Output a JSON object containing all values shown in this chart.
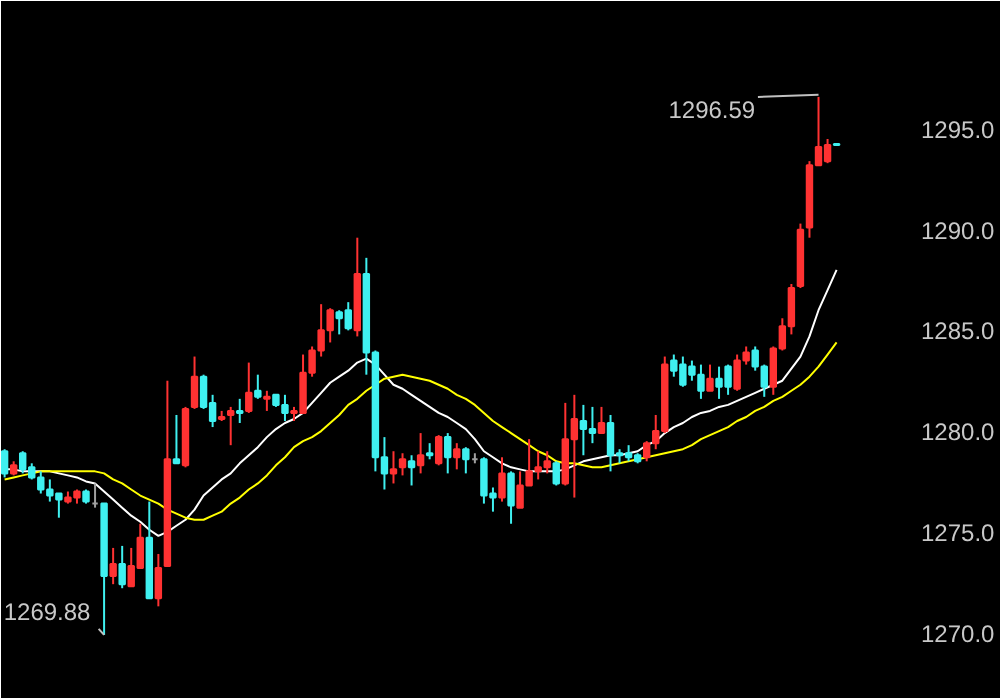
{
  "chart_data": {
    "type": "candlestick",
    "categories": [
      null,
      null,
      null,
      null,
      null,
      null,
      null,
      null,
      null,
      null,
      null,
      null,
      null,
      null,
      null,
      null,
      null,
      null,
      null,
      null,
      null,
      null,
      null,
      null,
      null,
      null,
      null,
      null,
      null,
      null,
      null,
      null,
      null,
      null,
      null,
      null,
      null,
      null,
      null,
      null,
      null,
      null,
      null,
      null,
      null,
      null,
      null,
      null,
      null,
      null,
      null,
      null,
      null,
      null,
      null,
      null,
      null,
      null,
      null,
      null,
      null,
      null,
      null,
      null,
      null,
      null,
      null,
      null,
      null,
      null,
      null,
      null,
      null,
      null,
      null,
      null,
      null,
      null,
      null,
      null,
      null,
      null,
      null,
      null,
      null,
      null,
      null,
      null,
      null,
      null,
      null,
      null,
      null
    ],
    "ohlc": [
      [
        1279.0,
        1279.1,
        1277.7,
        1277.9
      ],
      [
        1277.9,
        1278.5,
        1277.8,
        1278.3
      ],
      [
        1278.9,
        1279.0,
        1277.9,
        1278.1
      ],
      [
        1278.2,
        1278.4,
        1277.6,
        1277.7
      ],
      [
        1277.7,
        1278.0,
        1276.9,
        1277.1
      ],
      [
        1277.1,
        1277.6,
        1276.5,
        1276.8
      ],
      [
        1276.9,
        1276.9,
        1275.7,
        1276.6
      ],
      [
        1276.5,
        1277.0,
        1276.4,
        1276.7
      ],
      [
        1276.7,
        1277.1,
        1276.4,
        1277.0
      ],
      [
        1277.0,
        1277.1,
        1276.4,
        1276.5
      ],
      [
        1276.4,
        1277.4,
        1276.2,
        1276.4
      ],
      [
        1276.4,
        1276.4,
        1269.88,
        1272.8
      ],
      [
        1272.8,
        1274.2,
        1272.4,
        1273.4
      ],
      [
        1273.4,
        1274.3,
        1272.2,
        1272.4
      ],
      [
        1272.3,
        1274.2,
        1272.3,
        1273.3
      ],
      [
        1273.2,
        1275.4,
        1273.2,
        1274.7
      ],
      [
        1274.7,
        1276.5,
        1271.7,
        1271.7
      ],
      [
        1271.7,
        1273.9,
        1271.3,
        1273.2
      ],
      [
        1273.3,
        1282.5,
        1273.3,
        1278.6
      ],
      [
        1278.6,
        1280.8,
        1278.4,
        1278.4
      ],
      [
        1278.3,
        1281.2,
        1278.2,
        1281.1
      ],
      [
        1281.2,
        1283.7,
        1281.1,
        1282.7
      ],
      [
        1282.7,
        1282.8,
        1281.1,
        1281.2
      ],
      [
        1281.4,
        1281.8,
        1280.2,
        1280.5
      ],
      [
        1280.6,
        1281.0,
        1280.5,
        1280.7
      ],
      [
        1280.8,
        1281.2,
        1279.3,
        1281.0
      ],
      [
        1281.0,
        1281.6,
        1280.4,
        1280.9
      ],
      [
        1281.0,
        1283.4,
        1280.9,
        1281.9
      ],
      [
        1282.0,
        1282.8,
        1281.6,
        1281.7
      ],
      [
        1281.6,
        1282.0,
        1281.0,
        1281.7
      ],
      [
        1281.8,
        1281.8,
        1281.2,
        1281.3
      ],
      [
        1281.3,
        1281.8,
        1280.5,
        1280.9
      ],
      [
        1280.9,
        1281.2,
        1280.5,
        1281.0
      ],
      [
        1280.9,
        1283.8,
        1280.9,
        1282.9
      ],
      [
        1282.9,
        1284.2,
        1282.7,
        1284.0
      ],
      [
        1284.0,
        1286.3,
        1283.7,
        1285.0
      ],
      [
        1285.0,
        1286.1,
        1284.4,
        1286.0
      ],
      [
        1285.9,
        1286.0,
        1284.8,
        1285.6
      ],
      [
        1286.0,
        1286.4,
        1285.0,
        1285.1
      ],
      [
        1285.0,
        1289.6,
        1284.7,
        1287.8
      ],
      [
        1287.8,
        1288.6,
        1282.8,
        1283.9
      ],
      [
        1283.9,
        1284.0,
        1278.0,
        1278.7
      ],
      [
        1278.7,
        1279.7,
        1277.1,
        1277.9
      ],
      [
        1277.9,
        1279.0,
        1277.4,
        1278.1
      ],
      [
        1278.2,
        1278.9,
        1277.8,
        1278.6
      ],
      [
        1278.5,
        1278.8,
        1277.3,
        1278.2
      ],
      [
        1278.3,
        1279.9,
        1277.9,
        1278.8
      ],
      [
        1278.9,
        1279.4,
        1278.6,
        1278.8
      ],
      [
        1278.4,
        1279.8,
        1278.3,
        1279.7
      ],
      [
        1279.7,
        1279.9,
        1277.9,
        1278.7
      ],
      [
        1278.7,
        1279.4,
        1278.1,
        1279.1
      ],
      [
        1279.1,
        1279.2,
        1277.9,
        1278.6
      ],
      [
        1278.6,
        1278.9,
        1278.4,
        1278.6
      ],
      [
        1278.6,
        1278.7,
        1276.4,
        1276.8
      ],
      [
        1276.9,
        1277.2,
        1276.0,
        1276.7
      ],
      [
        1276.7,
        1278.7,
        1276.5,
        1277.9
      ],
      [
        1277.9,
        1278.0,
        1275.4,
        1276.3
      ],
      [
        1276.2,
        1278.0,
        1276.2,
        1277.3
      ],
      [
        1277.3,
        1279.6,
        1277.3,
        1278.0
      ],
      [
        1278.0,
        1279.0,
        1277.6,
        1278.2
      ],
      [
        1278.2,
        1279.0,
        1277.9,
        1278.5
      ],
      [
        1278.4,
        1278.5,
        1277.3,
        1277.4
      ],
      [
        1277.4,
        1281.4,
        1277.3,
        1279.6
      ],
      [
        1279.6,
        1281.8,
        1276.7,
        1280.6
      ],
      [
        1280.5,
        1281.3,
        1278.8,
        1280.1
      ],
      [
        1280.1,
        1281.2,
        1279.4,
        1279.9
      ],
      [
        1279.9,
        1281.2,
        1279.9,
        1280.4
      ],
      [
        1280.4,
        1280.8,
        1278.0,
        1278.8
      ],
      [
        1278.9,
        1279.1,
        1278.4,
        1278.8
      ],
      [
        1278.9,
        1279.3,
        1278.5,
        1278.7
      ],
      [
        1278.8,
        1278.9,
        1278.4,
        1278.5
      ],
      [
        1278.7,
        1279.5,
        1278.5,
        1279.4
      ],
      [
        1279.4,
        1280.8,
        1279.1,
        1280.0
      ],
      [
        1280.0,
        1283.7,
        1279.9,
        1283.3
      ],
      [
        1283.5,
        1283.8,
        1282.7,
        1283.0
      ],
      [
        1283.3,
        1283.7,
        1282.2,
        1282.3
      ],
      [
        1283.2,
        1283.5,
        1282.5,
        1282.8
      ],
      [
        1282.8,
        1283.3,
        1281.6,
        1282.0
      ],
      [
        1282.0,
        1283.3,
        1282.0,
        1282.6
      ],
      [
        1282.6,
        1283.2,
        1281.6,
        1282.2
      ],
      [
        1283.2,
        1283.3,
        1281.8,
        1282.2
      ],
      [
        1282.1,
        1283.8,
        1282.0,
        1283.5
      ],
      [
        1283.5,
        1284.2,
        1283.3,
        1283.9
      ],
      [
        1284.0,
        1284.2,
        1283.0,
        1283.2
      ],
      [
        1283.2,
        1283.3,
        1281.7,
        1282.2
      ],
      [
        1282.2,
        1284.2,
        1281.8,
        1284.1
      ],
      [
        1284.1,
        1285.6,
        1284.0,
        1285.2
      ],
      [
        1285.2,
        1287.3,
        1284.8,
        1287.1
      ],
      [
        1287.2,
        1290.3,
        1287.1,
        1290.0
      ],
      [
        1290.1,
        1293.4,
        1289.6,
        1293.2
      ],
      [
        1293.2,
        1296.59,
        1293.2,
        1294.1
      ],
      [
        1293.4,
        1294.5,
        1293.3,
        1294.2
      ],
      [
        1294.25,
        1294.25,
        1294.2,
        1294.2
      ]
    ],
    "colors": [
      "#3ff0f0",
      "#ff3232",
      "#3ff0f0",
      "#3ff0f0",
      "#3ff0f0",
      "#3ff0f0",
      "#3ff0f0",
      "#ff3232",
      "#ff3232",
      "#3ff0f0",
      "#a0a0a0",
      "#3ff0f0",
      "#ff3232",
      "#3ff0f0",
      "#ff3232",
      "#ff3232",
      "#3ff0f0",
      "#ff3232",
      "#ff3232",
      "#3ff0f0",
      "#ff3232",
      "#ff3232",
      "#3ff0f0",
      "#3ff0f0",
      "#ff3232",
      "#ff3232",
      "#3ff0f0",
      "#ff3232",
      "#3ff0f0",
      "#ff3232",
      "#3ff0f0",
      "#3ff0f0",
      "#ff3232",
      "#ff3232",
      "#ff3232",
      "#ff3232",
      "#ff3232",
      "#3ff0f0",
      "#3ff0f0",
      "#ff3232",
      "#3ff0f0",
      "#3ff0f0",
      "#3ff0f0",
      "#ff3232",
      "#ff3232",
      "#3ff0f0",
      "#ff3232",
      "#3ff0f0",
      "#ff3232",
      "#3ff0f0",
      "#ff3232",
      "#3ff0f0",
      "#a0a0a0",
      "#3ff0f0",
      "#3ff0f0",
      "#ff3232",
      "#3ff0f0",
      "#ff3232",
      "#ff3232",
      "#ff3232",
      "#ff3232",
      "#3ff0f0",
      "#ff3232",
      "#ff3232",
      "#3ff0f0",
      "#3ff0f0",
      "#ff3232",
      "#3ff0f0",
      "#3ff0f0",
      "#3ff0f0",
      "#3ff0f0",
      "#ff3232",
      "#ff3232",
      "#ff3232",
      "#3ff0f0",
      "#3ff0f0",
      "#3ff0f0",
      "#3ff0f0",
      "#ff3232",
      "#3ff0f0",
      "#3ff0f0",
      "#ff3232",
      "#ff3232",
      "#3ff0f0",
      "#3ff0f0",
      "#ff3232",
      "#ff3232",
      "#ff3232",
      "#ff3232",
      "#ff3232",
      "#ff3232",
      "#ff3232",
      "#3ff0f0"
    ],
    "series": [
      {
        "type": "line",
        "color": "#ffffff",
        "values": [
          1278.1,
          1278.1,
          1278.0,
          1278.0,
          1278.0,
          1278.0,
          1277.9,
          1277.8,
          1277.7,
          1277.5,
          1277.4,
          1277.0,
          1276.6,
          1276.2,
          1275.8,
          1275.5,
          1275.1,
          1274.8,
          1275.0,
          1275.3,
          1275.6,
          1276.1,
          1276.8,
          1277.2,
          1277.6,
          1277.9,
          1278.4,
          1278.8,
          1279.2,
          1279.7,
          1280.1,
          1280.4,
          1280.6,
          1280.9,
          1281.4,
          1281.9,
          1282.4,
          1282.7,
          1283.0,
          1283.4,
          1283.6,
          1283.3,
          1282.8,
          1282.3,
          1282.1,
          1281.8,
          1281.5,
          1281.2,
          1280.9,
          1280.7,
          1280.4,
          1280.1,
          1279.6,
          1279.0,
          1278.7,
          1278.4,
          1278.2,
          1278.1,
          1278.0,
          1278.0,
          1278.0,
          1278.0,
          1278.1,
          1278.3,
          1278.5,
          1278.6,
          1278.7,
          1278.8,
          1278.8,
          1278.9,
          1279.0,
          1279.3,
          1279.5,
          1279.9,
          1280.2,
          1280.4,
          1280.7,
          1280.9,
          1281.0,
          1281.2,
          1281.3,
          1281.5,
          1281.7,
          1281.9,
          1282.1,
          1282.3,
          1282.5,
          1283.1,
          1283.7,
          1284.7,
          1286.0,
          1287.0,
          1288.0
        ]
      },
      {
        "type": "line",
        "color": "#ffff00",
        "values": [
          1277.6,
          1277.7,
          1277.8,
          1277.9,
          1278.0,
          1278.0,
          1278.0,
          1278.0,
          1278.0,
          1278.0,
          1278.0,
          1277.9,
          1277.6,
          1277.4,
          1277.1,
          1276.8,
          1276.6,
          1276.4,
          1276.1,
          1275.9,
          1275.7,
          1275.6,
          1275.6,
          1275.8,
          1276.0,
          1276.4,
          1276.7,
          1277.1,
          1277.4,
          1277.8,
          1278.3,
          1278.7,
          1279.2,
          1279.5,
          1279.7,
          1280.0,
          1280.4,
          1280.8,
          1281.3,
          1281.6,
          1282.0,
          1282.3,
          1282.6,
          1282.7,
          1282.8,
          1282.7,
          1282.6,
          1282.5,
          1282.3,
          1282.1,
          1281.8,
          1281.6,
          1281.3,
          1280.9,
          1280.5,
          1280.2,
          1279.9,
          1279.6,
          1279.3,
          1279.0,
          1278.8,
          1278.5,
          1278.4,
          1278.4,
          1278.3,
          1278.2,
          1278.2,
          1278.3,
          1278.4,
          1278.5,
          1278.6,
          1278.7,
          1278.8,
          1278.9,
          1279.0,
          1279.1,
          1279.3,
          1279.6,
          1279.8,
          1280.0,
          1280.2,
          1280.5,
          1280.7,
          1281.0,
          1281.2,
          1281.5,
          1281.7,
          1282.0,
          1282.3,
          1282.7,
          1283.2,
          1283.8,
          1284.4
        ]
      }
    ],
    "annotations": [
      "1296.59",
      "1269.88"
    ],
    "ylim": [
      1266.7,
      1301.35
    ],
    "yticks": [
      {
        "value": 1270,
        "label": "1270.0"
      },
      {
        "value": 1275,
        "label": "1275.0"
      },
      {
        "value": 1280,
        "label": "1280.0"
      },
      {
        "value": 1285,
        "label": "1285.0"
      },
      {
        "value": 1290,
        "label": "1290.0"
      },
      {
        "value": 1295,
        "label": "1295.0"
      }
    ],
    "tick_labels": "y",
    "grid": false
  }
}
